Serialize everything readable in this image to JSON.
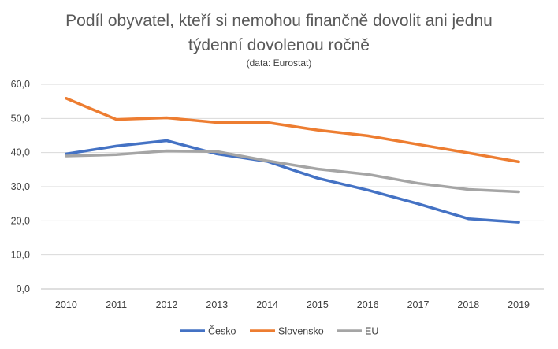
{
  "chart_data": {
    "type": "line",
    "title_line1": "Podíl obyvatel, kteří si nemohou finančně dovolit ani jednu",
    "title_line2": "týdenní dovolenou ročně",
    "subtitle": "(data: Eurostat)",
    "xlabel": "",
    "ylabel": "",
    "x": [
      "2010",
      "2011",
      "2012",
      "2013",
      "2014",
      "2015",
      "2016",
      "2017",
      "2018",
      "2019"
    ],
    "ylim": [
      0,
      60
    ],
    "yticks": [
      "0,0",
      "10,0",
      "20,0",
      "30,0",
      "40,0",
      "50,0",
      "60,0"
    ],
    "grid": true,
    "legend_position": "bottom",
    "series": [
      {
        "name": "Česko",
        "color": "#4472C4",
        "values": [
          39.6,
          41.9,
          43.5,
          39.6,
          37.4,
          32.5,
          29.0,
          25.0,
          20.6,
          19.6
        ]
      },
      {
        "name": "Slovensko",
        "color": "#ED7D31",
        "values": [
          55.9,
          49.7,
          50.2,
          48.8,
          48.8,
          46.6,
          44.9,
          42.4,
          39.9,
          37.3
        ]
      },
      {
        "name": "EU",
        "color": "#A5A5A5",
        "values": [
          39.0,
          39.4,
          40.5,
          40.3,
          37.6,
          35.2,
          33.6,
          31.0,
          29.2,
          28.5
        ]
      }
    ]
  }
}
